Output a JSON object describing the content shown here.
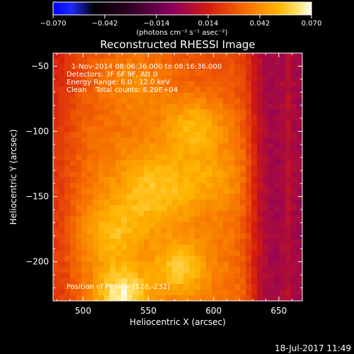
{
  "chart_data": {
    "type": "heatmap",
    "title": "Reconstructed RHESSI Image",
    "xlabel": "Heliocentric X (arcsec)",
    "ylabel": "Heliocentric Y (arcsec)",
    "xlim": [
      477,
      668
    ],
    "ylim": [
      -230,
      -40
    ],
    "xticks": [
      500,
      550,
      600,
      650
    ],
    "yticks": [
      -50,
      -100,
      -150,
      -200
    ],
    "grid": false,
    "colorbar": {
      "position": "top",
      "range": [
        -0.07,
        0.07
      ],
      "tick_values": [
        -0.07,
        -0.042,
        -0.014,
        0.014,
        0.042,
        0.07
      ],
      "tick_labels": [
        "−0.070",
        "−0.042",
        "−0.014",
        "0.014",
        "0.042",
        "0.070"
      ],
      "unit": "(photons cm⁻² s⁻¹ asec⁻²)"
    },
    "annotations": [
      "1-Nov-2014 08:06:36.000 to 08:16:36.000",
      "Detectors: 3F 6F 9F, Att 0",
      "Energy Range: 6.0 - 12.0 keV",
      "Clean    Total counts: 6.29E+04"
    ],
    "peak_label": "Position of Peak = [528,-232]",
    "peak": {
      "x": 528,
      "y": -232
    },
    "field": {
      "description_values": "intensity in colorbar units",
      "east_limb_drop_x": 630,
      "max_value": 0.07
    }
  },
  "footer": {
    "timestamp": "18-Jul-2017 11:49"
  }
}
